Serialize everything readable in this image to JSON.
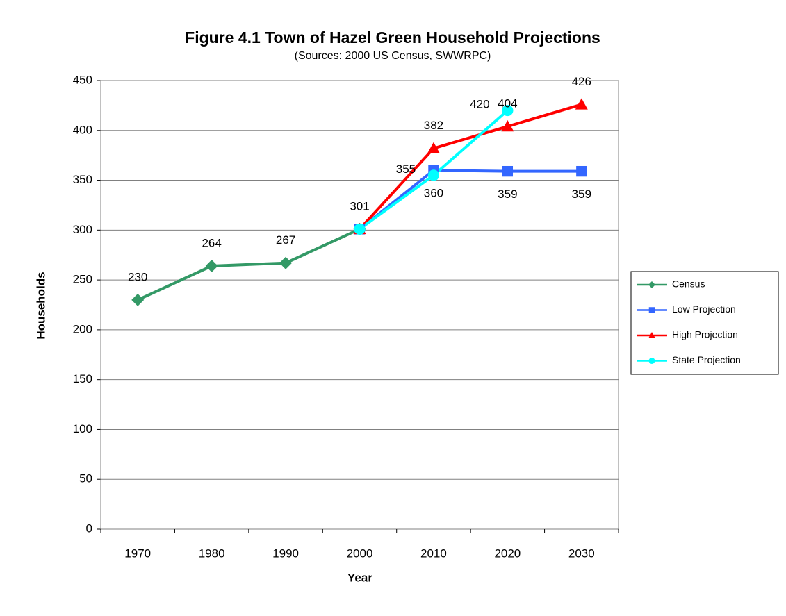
{
  "chart_data": {
    "type": "line",
    "title": "Figure 4.1 Town of Hazel Green Household Projections",
    "subtitle": "(Sources:  2000 US Census, SWWRPC)",
    "x_label": "Year",
    "y_label": "Households",
    "categories": [
      "1970",
      "1980",
      "1990",
      "2000",
      "2010",
      "2020",
      "2030"
    ],
    "series": [
      {
        "name": "Census",
        "color": "#339966",
        "marker": "diamond",
        "label_position": "above",
        "values": [
          230,
          264,
          267,
          301,
          null,
          null,
          null
        ]
      },
      {
        "name": "Low Projection",
        "color": "#3366ff",
        "marker": "square",
        "label_position": "below",
        "values": [
          null,
          null,
          null,
          301,
          360,
          359,
          359
        ],
        "value_labels": [
          null,
          null,
          null,
          null,
          "360",
          "359",
          "359"
        ]
      },
      {
        "name": "High Projection",
        "color": "#ff0000",
        "marker": "triangle",
        "label_position": "above",
        "values": [
          null,
          null,
          null,
          301,
          382,
          404,
          426
        ],
        "value_labels": [
          null,
          null,
          null,
          null,
          "382",
          "404",
          "426"
        ]
      },
      {
        "name": "State Projection",
        "color": "#00ffff",
        "marker": "circle",
        "label_position": "left",
        "values": [
          null,
          null,
          null,
          301,
          355,
          420,
          null
        ],
        "value_labels": [
          null,
          null,
          null,
          null,
          "355",
          "420",
          null
        ]
      }
    ],
    "ylim": [
      0,
      450
    ],
    "yticks": [
      0,
      50,
      100,
      150,
      200,
      250,
      300,
      350,
      400,
      450
    ],
    "grid": true,
    "legend": "right"
  }
}
